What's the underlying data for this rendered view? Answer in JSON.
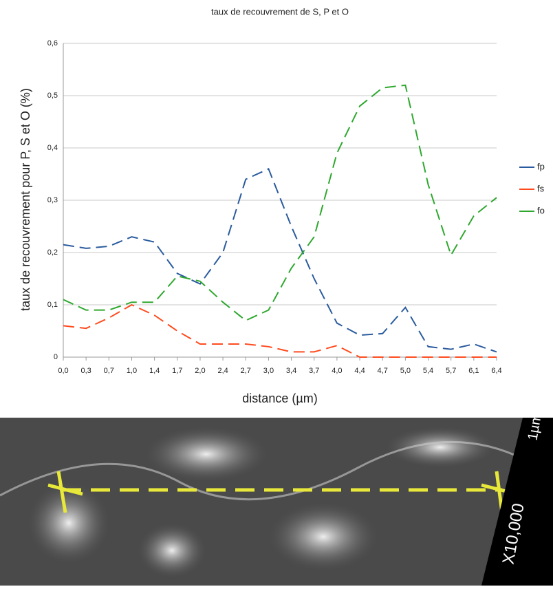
{
  "chart_data": {
    "type": "line",
    "title": "taux de recouvrement de S, P et O",
    "x_label": "distance (µm)",
    "y_label": "taux de recouvrement pour P, S et O (%)",
    "categories": [
      "0,0",
      "0,3",
      "0,7",
      "1,0",
      "1,4",
      "1,7",
      "2,0",
      "2,4",
      "2,7",
      "3,0",
      "3,4",
      "3,7",
      "4,0",
      "4,4",
      "4,7",
      "5,0",
      "5,4",
      "5,7",
      "6,1",
      "6,4"
    ],
    "series": [
      {
        "name": "fp",
        "color": "#2a5b9e",
        "values": [
          0.215,
          0.208,
          0.212,
          0.23,
          0.22,
          0.16,
          0.14,
          0.2,
          0.34,
          0.36,
          0.25,
          0.15,
          0.065,
          0.042,
          0.045,
          0.095,
          0.02,
          0.015,
          0.025,
          0.01
        ]
      },
      {
        "name": "fs",
        "color": "#ff4b1f",
        "values": [
          0.06,
          0.055,
          0.075,
          0.1,
          0.08,
          0.05,
          0.025,
          0.025,
          0.025,
          0.02,
          0.01,
          0.01,
          0.022,
          0,
          0,
          0,
          0,
          0,
          0,
          0
        ]
      },
      {
        "name": "fo",
        "color": "#2ea82e",
        "values": [
          0.11,
          0.09,
          0.09,
          0.105,
          0.105,
          0.155,
          0.145,
          0.105,
          0.07,
          0.09,
          0.17,
          0.23,
          0.39,
          0.48,
          0.515,
          0.52,
          0.33,
          0.195,
          0.27,
          0.305
        ]
      }
    ],
    "ylim": [
      0,
      0.6
    ],
    "yticks": [
      0,
      {
        "value": 0.1,
        "label": "0,1"
      },
      {
        "value": 0.2,
        "label": "0,2"
      },
      {
        "value": 0.3,
        "label": "0,3"
      },
      {
        "value": 0.4,
        "label": "0,4"
      },
      {
        "value": 0.5,
        "label": "0,5"
      },
      {
        "value": 0.6,
        "label": "0,6"
      }
    ],
    "grid": true,
    "legend": "right"
  },
  "image": {
    "scale_label": "1µm",
    "magnification": "X10,000"
  }
}
